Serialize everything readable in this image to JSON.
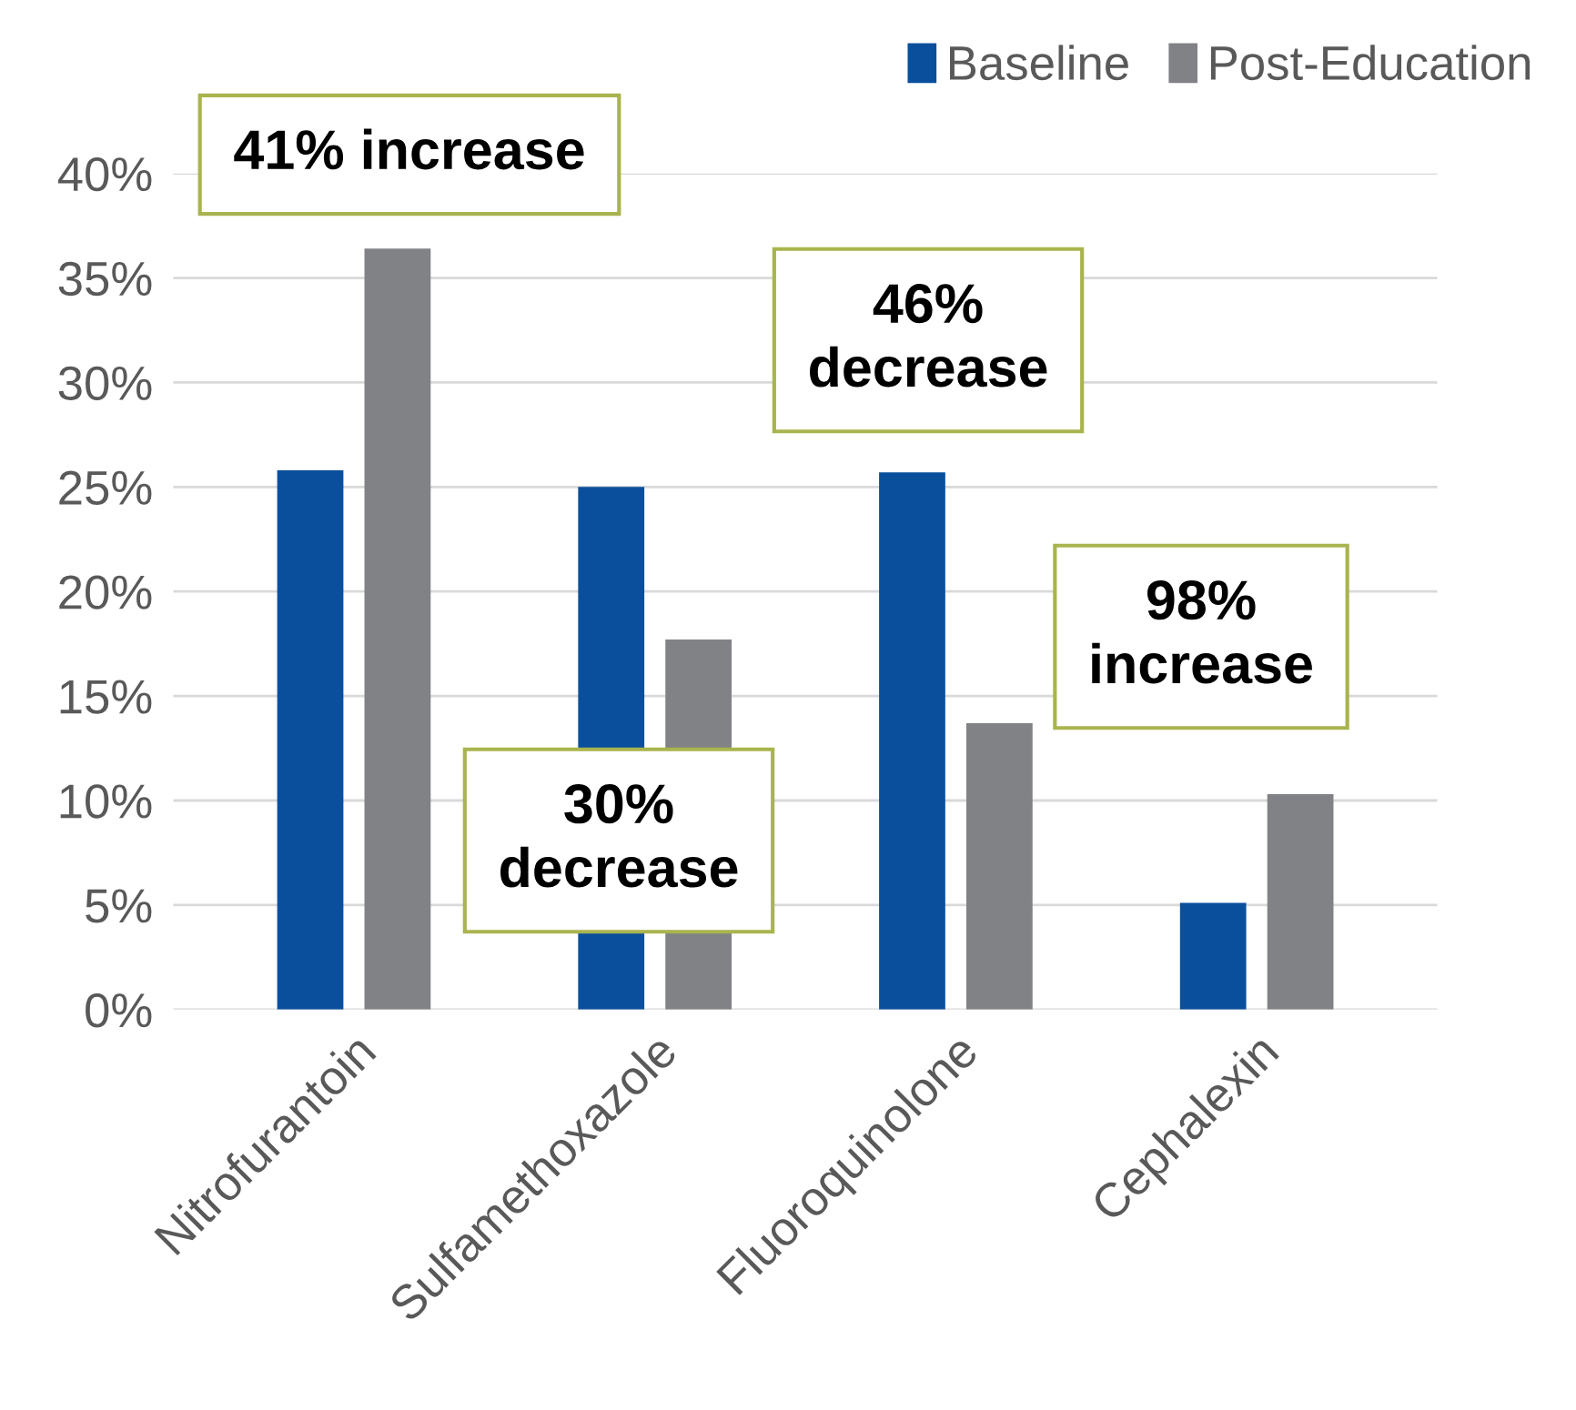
{
  "chart_data": {
    "type": "bar",
    "categories": [
      "Nitrofurantoin",
      "Sulfamethoxazole",
      "Fluoroquinolone",
      "Cephalexin"
    ],
    "series": [
      {
        "name": "Baseline",
        "color": "#0a4f9c",
        "values": [
          25.8,
          25.0,
          25.7,
          5.1
        ]
      },
      {
        "name": "Post-Education",
        "color": "#818285",
        "values": [
          36.4,
          17.7,
          13.7,
          10.3
        ]
      }
    ],
    "ylim": [
      0,
      40
    ],
    "yticks": [
      {
        "value": 0,
        "label": "0%"
      },
      {
        "value": 5,
        "label": "5%"
      },
      {
        "value": 10,
        "label": "10%"
      },
      {
        "value": 15,
        "label": "15%"
      },
      {
        "value": 20,
        "label": "20%"
      },
      {
        "value": 25,
        "label": "25%"
      },
      {
        "value": 30,
        "label": "30%"
      },
      {
        "value": 35,
        "label": "35%"
      },
      {
        "value": 40,
        "label": "40%"
      }
    ],
    "grid": "y",
    "legend": "top right",
    "annotations": [
      "41% increase",
      "30%\ndecrease",
      "46%\ndecrease",
      "98%\nincrease"
    ]
  }
}
